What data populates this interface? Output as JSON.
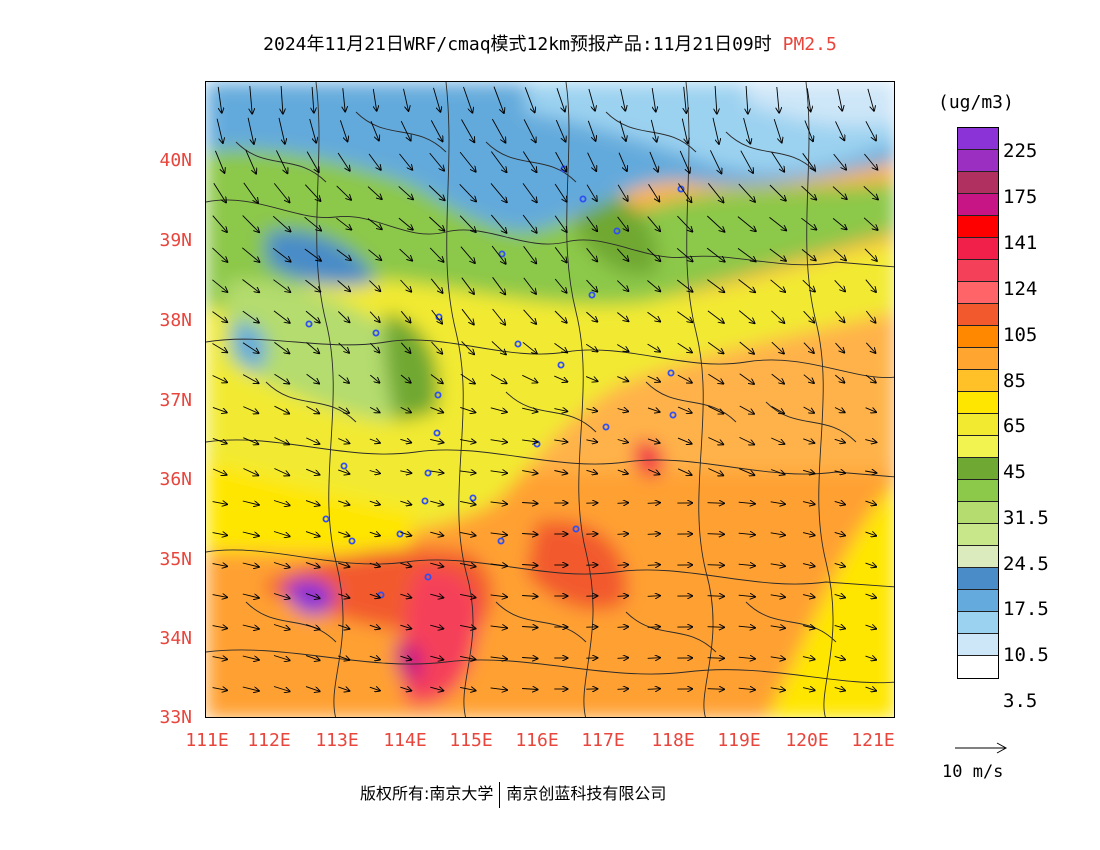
{
  "title": {
    "main": "2024年11月21日WRF/cmaq模式12km预报产品:11月21日09时",
    "variable": "PM2.5"
  },
  "axes": {
    "y_ticks": [
      "40N",
      "39N",
      "38N",
      "37N",
      "36N",
      "35N",
      "34N",
      "33N"
    ],
    "x_ticks": [
      "111E",
      "112E",
      "113E",
      "114E",
      "115E",
      "116E",
      "117E",
      "118E",
      "119E",
      "120E",
      "121E"
    ]
  },
  "legend": {
    "unit": "(ug/m3)",
    "colors": [
      "#8b33d6",
      "#9b2fc2",
      "#b03060",
      "#c71585",
      "#ff0000",
      "#f0204a",
      "#f5405a",
      "#ff6468",
      "#f25a2e",
      "#ff8800",
      "#ffa530",
      "#ffc028",
      "#ffe600",
      "#f2ea30",
      "#f2f250",
      "#6fa832",
      "#8cc84a",
      "#b4dc6e",
      "#c8e68a",
      "#dcebbe",
      "#4a8cc8",
      "#64aadc",
      "#9bd2f0",
      "#cde6f8",
      "#ffffff"
    ],
    "labels": [
      "225",
      "175",
      "141",
      "124",
      "105",
      "85",
      "65",
      "45",
      "31.5",
      "24.5",
      "17.5",
      "10.5",
      "3.5"
    ]
  },
  "reference_vector": {
    "label": "10 m/s"
  },
  "copyright": {
    "left": "版权所有:南京大学",
    "right": "南京创蓝科技有限公司"
  }
}
